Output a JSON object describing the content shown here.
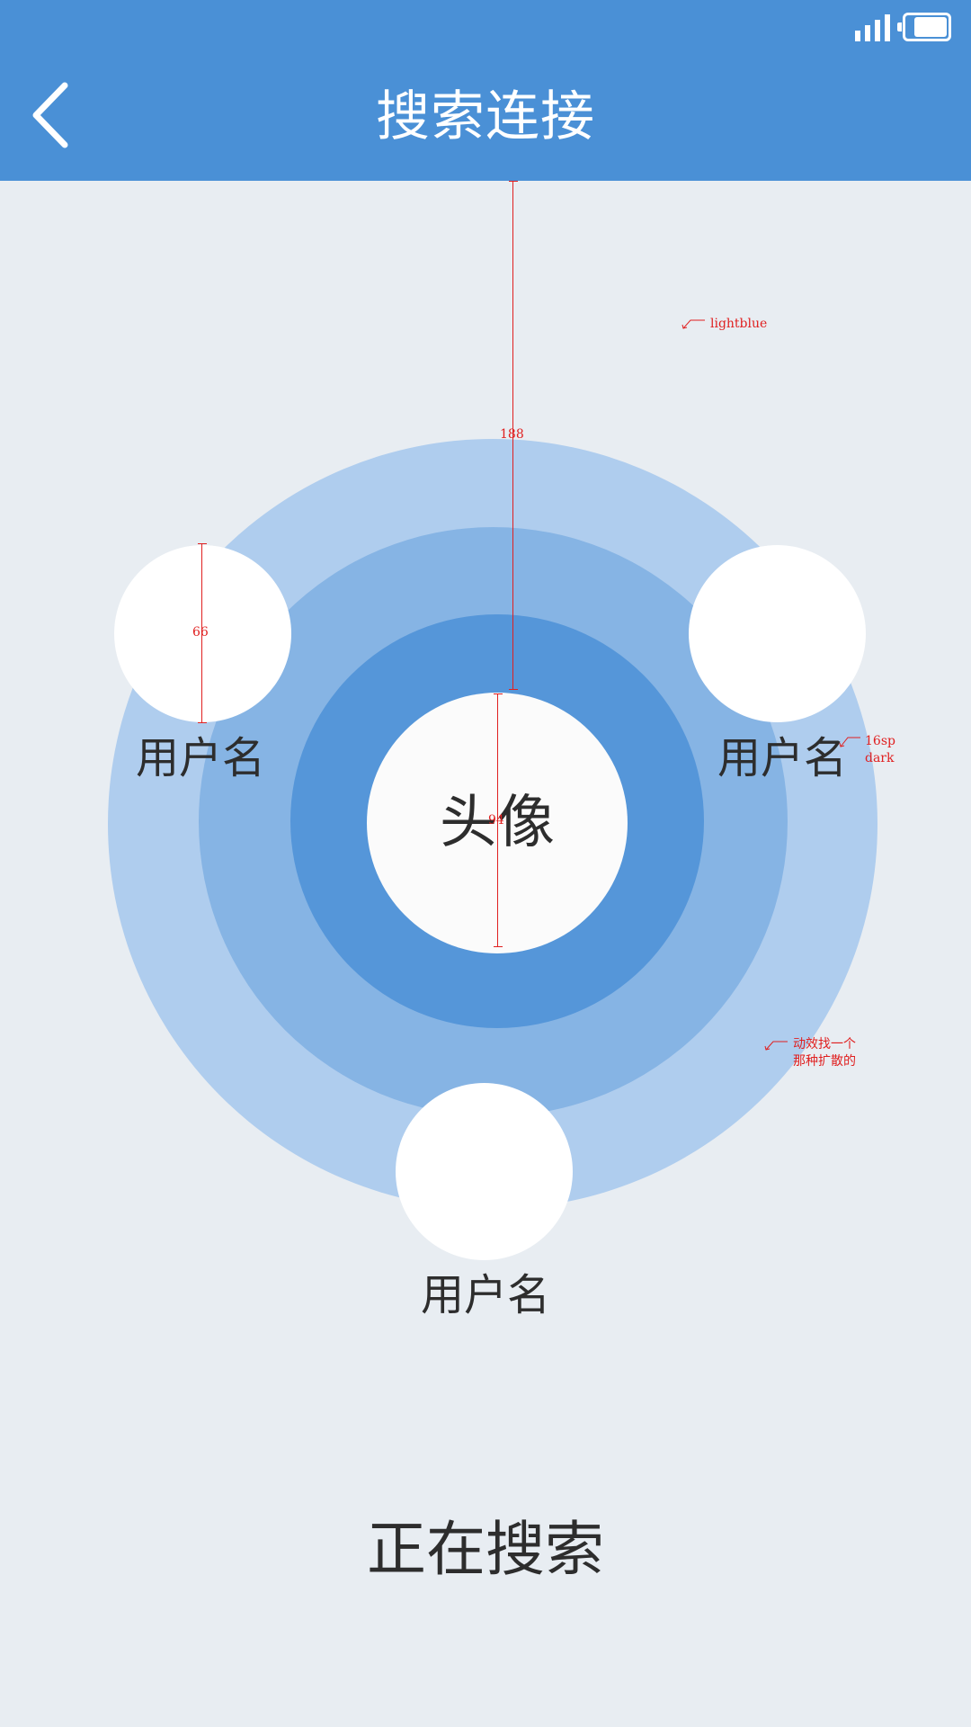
{
  "header": {
    "title": "搜索连接",
    "back_icon": "chevron-left-icon",
    "status_icons": [
      "signal-icon",
      "battery-icon"
    ],
    "background": "#4a90d6"
  },
  "radar": {
    "center_label": "头像",
    "ring_colors": [
      "#afcdee",
      "#86b4e4",
      "#5596d9"
    ],
    "users": [
      {
        "name": "用户名"
      },
      {
        "name": "用户名"
      },
      {
        "name": "用户名"
      }
    ]
  },
  "status": {
    "text": "正在搜索"
  },
  "annotations": {
    "dim_188": "188",
    "dim_66": "66",
    "dim_94": "94",
    "color_note": "lightblue",
    "font_note_1": "16sp",
    "font_note_2": "dark",
    "anim_note_1": "动效找一个",
    "anim_note_2": "那种扩散的"
  }
}
